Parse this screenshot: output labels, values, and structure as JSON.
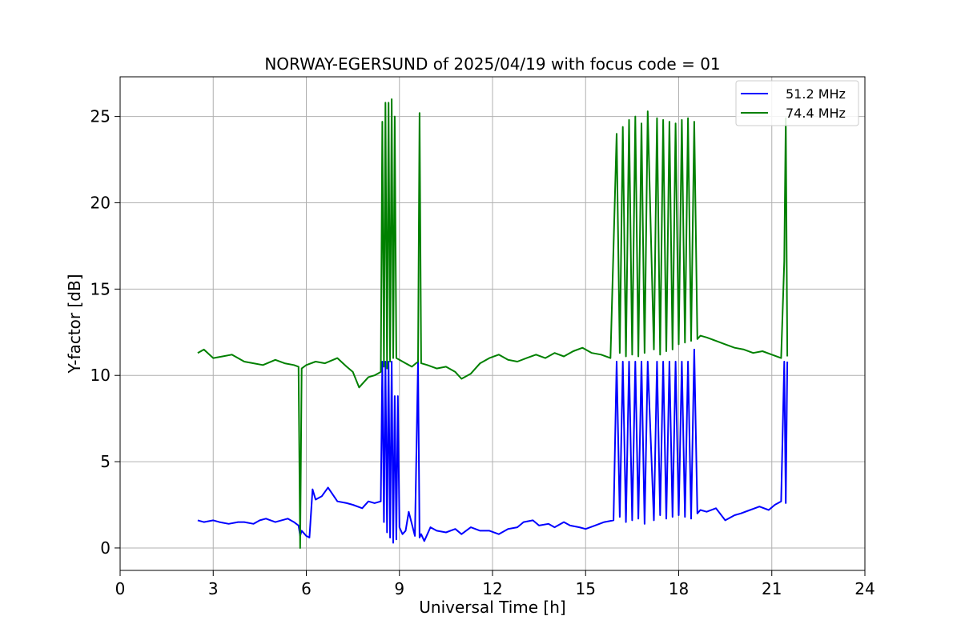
{
  "chart_data": {
    "type": "line",
    "title": "NORWAY-EGERSUND of 2025/04/19 with focus code = 01",
    "xlabel": "Universal Time [h]",
    "ylabel": "Y-factor [dB]",
    "xlim": [
      0,
      24
    ],
    "ylim": [
      -1.3,
      27.3
    ],
    "xticks": [
      0,
      3,
      6,
      9,
      12,
      15,
      18,
      21,
      24
    ],
    "yticks": [
      0,
      5,
      10,
      15,
      20,
      25
    ],
    "grid": true,
    "legend_position": "top-right",
    "series": [
      {
        "name": "51.2 MHz",
        "color": "#0000ff",
        "x": [
          2.5,
          2.7,
          3.0,
          3.2,
          3.5,
          3.8,
          4.0,
          4.3,
          4.5,
          4.7,
          5.0,
          5.2,
          5.4,
          5.6,
          5.75,
          5.8,
          5.85,
          6.0,
          6.1,
          6.2,
          6.3,
          6.5,
          6.7,
          7.0,
          7.3,
          7.5,
          7.8,
          8.0,
          8.2,
          8.4,
          8.45,
          8.5,
          8.55,
          8.6,
          8.65,
          8.7,
          8.75,
          8.8,
          8.85,
          8.9,
          8.95,
          9.0,
          9.1,
          9.2,
          9.3,
          9.5,
          9.6,
          9.65,
          9.7,
          9.8,
          10.0,
          10.2,
          10.5,
          10.8,
          11.0,
          11.3,
          11.6,
          11.9,
          12.2,
          12.5,
          12.8,
          13.0,
          13.3,
          13.5,
          13.8,
          14.0,
          14.3,
          14.5,
          14.8,
          15.0,
          15.3,
          15.6,
          15.9,
          16.0,
          16.1,
          16.2,
          16.3,
          16.4,
          16.5,
          16.6,
          16.7,
          16.8,
          16.9,
          17.0,
          17.2,
          17.3,
          17.4,
          17.5,
          17.6,
          17.7,
          17.8,
          17.9,
          18.0,
          18.1,
          18.2,
          18.3,
          18.4,
          18.5,
          18.6,
          18.7,
          18.9,
          19.2,
          19.5,
          19.8,
          20.0,
          20.3,
          20.6,
          20.9,
          21.1,
          21.3,
          21.4,
          21.45,
          21.5
        ],
        "values": [
          1.6,
          1.5,
          1.6,
          1.5,
          1.4,
          1.5,
          1.5,
          1.4,
          1.6,
          1.7,
          1.5,
          1.6,
          1.7,
          1.5,
          1.3,
          0.7,
          1.0,
          0.7,
          0.6,
          3.4,
          2.8,
          3.0,
          3.5,
          2.7,
          2.6,
          2.5,
          2.3,
          2.7,
          2.6,
          2.7,
          10.8,
          1.5,
          10.8,
          0.9,
          10.8,
          0.6,
          10.8,
          0.3,
          8.8,
          0.5,
          8.8,
          1.2,
          0.8,
          1.0,
          2.1,
          0.7,
          10.8,
          0.6,
          0.8,
          0.4,
          1.2,
          1.0,
          0.9,
          1.1,
          0.8,
          1.2,
          1.0,
          1.0,
          0.8,
          1.1,
          1.2,
          1.5,
          1.6,
          1.3,
          1.4,
          1.2,
          1.5,
          1.3,
          1.2,
          1.1,
          1.3,
          1.5,
          1.6,
          10.8,
          1.8,
          10.8,
          1.5,
          10.8,
          1.6,
          10.8,
          1.7,
          10.8,
          1.4,
          10.8,
          1.6,
          10.8,
          1.9,
          10.8,
          1.7,
          10.8,
          1.8,
          10.8,
          1.9,
          10.8,
          1.8,
          10.8,
          1.7,
          11.5,
          2.0,
          2.2,
          2.1,
          2.3,
          1.6,
          1.9,
          2.0,
          2.2,
          2.4,
          2.2,
          2.5,
          2.7,
          10.8,
          2.6,
          10.8
        ]
      },
      {
        "name": "74.4 MHz",
        "color": "#008000",
        "x": [
          2.5,
          2.7,
          3.0,
          3.3,
          3.6,
          4.0,
          4.3,
          4.6,
          5.0,
          5.3,
          5.6,
          5.75,
          5.8,
          5.85,
          6.0,
          6.3,
          6.6,
          7.0,
          7.3,
          7.5,
          7.7,
          8.0,
          8.2,
          8.4,
          8.45,
          8.5,
          8.55,
          8.6,
          8.65,
          8.7,
          8.75,
          8.8,
          8.85,
          8.9,
          9.0,
          9.2,
          9.4,
          9.6,
          9.65,
          9.7,
          9.9,
          10.2,
          10.5,
          10.8,
          11.0,
          11.3,
          11.6,
          11.9,
          12.2,
          12.5,
          12.8,
          13.1,
          13.4,
          13.7,
          14.0,
          14.3,
          14.6,
          14.9,
          15.2,
          15.5,
          15.8,
          16.0,
          16.1,
          16.2,
          16.3,
          16.4,
          16.5,
          16.6,
          16.7,
          16.8,
          16.9,
          17.0,
          17.2,
          17.3,
          17.4,
          17.5,
          17.6,
          17.7,
          17.8,
          17.9,
          18.0,
          18.1,
          18.2,
          18.3,
          18.4,
          18.5,
          18.6,
          18.7,
          18.9,
          19.2,
          19.5,
          19.8,
          20.1,
          20.4,
          20.7,
          21.0,
          21.3,
          21.4,
          21.45,
          21.5
        ],
        "values": [
          11.3,
          11.5,
          11.0,
          11.1,
          11.2,
          10.8,
          10.7,
          10.6,
          10.9,
          10.7,
          10.6,
          10.5,
          0.0,
          10.4,
          10.6,
          10.8,
          10.7,
          11.0,
          10.5,
          10.2,
          9.3,
          9.9,
          10.0,
          10.2,
          24.7,
          10.5,
          25.8,
          10.4,
          25.8,
          10.8,
          26.0,
          11.0,
          25.0,
          11.0,
          10.9,
          10.7,
          10.5,
          10.8,
          25.2,
          10.7,
          10.6,
          10.4,
          10.5,
          10.2,
          9.8,
          10.1,
          10.7,
          11.0,
          11.2,
          10.9,
          10.8,
          11.0,
          11.2,
          11.0,
          11.3,
          11.1,
          11.4,
          11.6,
          11.3,
          11.2,
          11.0,
          24.0,
          11.3,
          24.4,
          11.1,
          24.8,
          11.2,
          25.0,
          11.1,
          24.6,
          11.3,
          25.3,
          11.5,
          24.9,
          11.2,
          24.8,
          11.4,
          24.7,
          11.5,
          24.6,
          11.8,
          24.8,
          11.9,
          24.9,
          12.0,
          24.7,
          12.1,
          12.3,
          12.2,
          12.0,
          11.8,
          11.6,
          11.5,
          11.3,
          11.4,
          11.2,
          11.0,
          16.6,
          24.9,
          11.1
        ]
      }
    ]
  }
}
